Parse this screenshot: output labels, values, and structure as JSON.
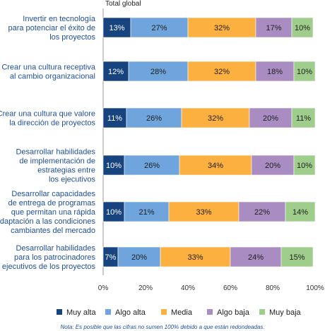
{
  "chart_data": {
    "type": "bar",
    "orientation": "horizontal",
    "stacked": true,
    "subtitle": "Total global",
    "categories": [
      [
        "Invertir en tecnología",
        "para potenciar el éxito de",
        "los proyectos"
      ],
      [
        "Crear una cultura receptiva",
        "al cambio organizacional"
      ],
      [
        "Crear una cultura que valore",
        "la dirección de proyectos"
      ],
      [
        "Desarrollar habilidades",
        "de implementación de",
        "estrategias entre",
        "los ejecutivos"
      ],
      [
        "Desarrollar capacidades",
        "de entrega de programas",
        "que permitan una rápida",
        "adaptación a las condiciones",
        "cambiantes del mercado"
      ],
      [
        "Desarrollar habilidades",
        "para los patrocinadores",
        "ejecutivos de los proyectos"
      ]
    ],
    "series": [
      {
        "name": "Muy alta",
        "color": "#17447e",
        "values": [
          13,
          12,
          11,
          10,
          10,
          7
        ]
      },
      {
        "name": "Algo alta",
        "color": "#6fa5dc",
        "values": [
          27,
          28,
          26,
          26,
          21,
          20
        ]
      },
      {
        "name": "Media",
        "color": "#fbb040",
        "values": [
          32,
          32,
          32,
          34,
          33,
          33
        ]
      },
      {
        "name": "Algo baja",
        "color": "#a98cc2",
        "values": [
          17,
          18,
          20,
          20,
          22,
          24
        ]
      },
      {
        "name": "Muy baja",
        "color": "#9fce8c",
        "values": [
          10,
          10,
          11,
          10,
          14,
          15
        ]
      }
    ],
    "value_suffix": "%",
    "x_ticks": [
      "0%",
      "20%",
      "40%",
      "60%",
      "80%",
      "100%"
    ],
    "xlim": [
      0,
      100
    ],
    "grid": false,
    "legend_position": "bottom",
    "note": "Nota: Es posible que las cifras no sumen 100% debido a que están redondeadas."
  }
}
